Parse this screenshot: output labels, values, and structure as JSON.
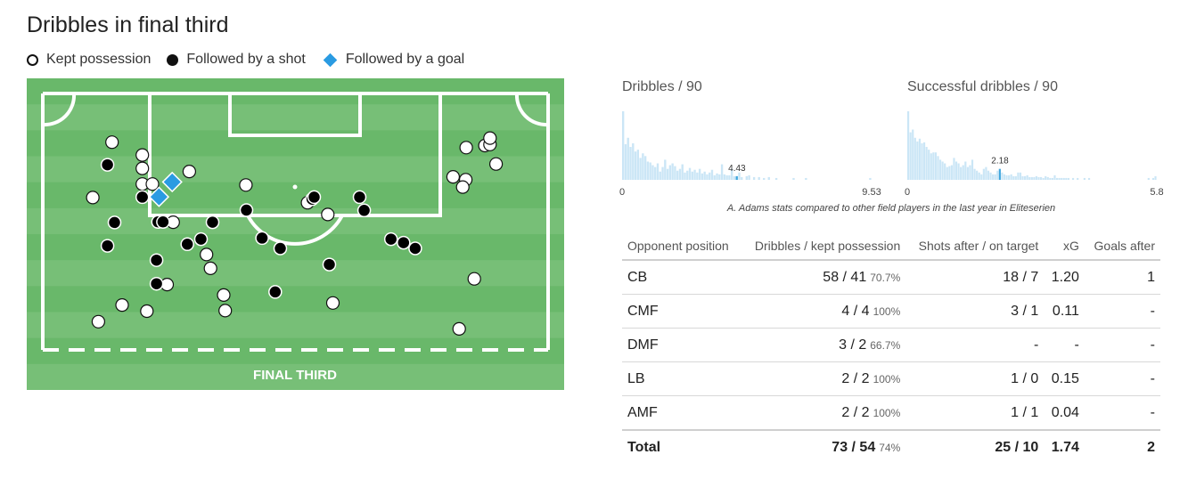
{
  "title": "Dribbles in final third",
  "legend": {
    "kept": "Kept possession",
    "shot": "Followed by a shot",
    "goal": "Followed by a goal"
  },
  "colors": {
    "pitch_dark": "#69b86a",
    "pitch_light": "#77bf77",
    "goal_marker": "#2a9be2",
    "hist_bar": "#cbe6f6",
    "hist_highlight": "#3fa6dd"
  },
  "chart_data": [
    {
      "type": "scatter",
      "title": "Dribbles in final third",
      "zone_label": "FINAL THIRD",
      "coordinate_note": "normalized pitch position: x 0=left touchline, 1=right touchline; y 0=goal line, 1=bottom of final third",
      "series": [
        {
          "name": "Kept possession",
          "points": [
            [
              0.137,
              0.19
            ],
            [
              0.197,
              0.24
            ],
            [
              0.197,
              0.292
            ],
            [
              0.197,
              0.353
            ],
            [
              0.217,
              0.353
            ],
            [
              0.29,
              0.304
            ],
            [
              0.402,
              0.357
            ],
            [
              0.099,
              0.406
            ],
            [
              0.524,
              0.426
            ],
            [
              0.564,
              0.472
            ],
            [
              0.258,
              0.502
            ],
            [
              0.324,
              0.628
            ],
            [
              0.332,
              0.682
            ],
            [
              0.246,
              0.745
            ],
            [
              0.358,
              0.786
            ],
            [
              0.361,
              0.847
            ],
            [
              0.157,
              0.825
            ],
            [
              0.206,
              0.849
            ],
            [
              0.11,
              0.89
            ],
            [
              0.574,
              0.817
            ],
            [
              0.838,
              0.211
            ],
            [
              0.875,
              0.203
            ],
            [
              0.885,
              0.199
            ],
            [
              0.885,
              0.174
            ],
            [
              0.897,
              0.275
            ],
            [
              0.812,
              0.325
            ],
            [
              0.837,
              0.336
            ],
            [
              0.831,
              0.365
            ],
            [
              0.854,
              0.723
            ],
            [
              0.824,
              0.918
            ]
          ]
        },
        {
          "name": "Followed by a shot",
          "points": [
            [
              0.128,
              0.278
            ],
            [
              0.197,
              0.404
            ],
            [
              0.142,
              0.503
            ],
            [
              0.228,
              0.501
            ],
            [
              0.238,
              0.501
            ],
            [
              0.336,
              0.502
            ],
            [
              0.403,
              0.455
            ],
            [
              0.533,
              0.412
            ],
            [
              0.537,
              0.404
            ],
            [
              0.627,
              0.404
            ],
            [
              0.636,
              0.456
            ],
            [
              0.313,
              0.568
            ],
            [
              0.286,
              0.588
            ],
            [
              0.128,
              0.594
            ],
            [
              0.434,
              0.564
            ],
            [
              0.47,
              0.604
            ],
            [
              0.689,
              0.568
            ],
            [
              0.714,
              0.582
            ],
            [
              0.737,
              0.604
            ],
            [
              0.225,
              0.65
            ],
            [
              0.225,
              0.742
            ],
            [
              0.567,
              0.667
            ],
            [
              0.46,
              0.774
            ]
          ]
        },
        {
          "name": "Followed by a goal",
          "points": [
            [
              0.256,
              0.345
            ],
            [
              0.23,
              0.403
            ]
          ]
        }
      ]
    },
    {
      "type": "bar",
      "title": "Dribbles / 90",
      "x_range": [
        0,
        9.53
      ],
      "tick_labels": [
        "0",
        "9.53"
      ],
      "player_value": 4.43,
      "values": [
        75,
        39,
        46,
        36,
        40,
        31,
        33,
        24,
        29,
        26,
        20,
        19,
        16,
        14,
        18,
        9,
        14,
        22,
        12,
        16,
        18,
        15,
        10,
        12,
        17,
        8,
        10,
        13,
        9,
        11,
        8,
        12,
        7,
        9,
        6,
        8,
        11,
        5,
        7,
        6,
        17,
        6,
        5,
        5,
        12,
        4,
        4,
        8,
        3,
        0,
        4,
        5,
        0,
        3,
        0,
        3,
        0,
        2,
        0,
        3,
        0,
        0,
        2,
        0,
        0,
        0,
        0,
        0,
        0,
        2,
        0,
        0,
        0,
        0,
        2,
        0,
        0,
        0,
        0,
        0,
        0,
        0,
        0,
        0,
        0,
        0,
        0,
        0,
        0,
        0,
        0,
        0,
        0,
        0,
        0,
        0,
        0,
        0,
        0,
        0,
        2
      ]
    },
    {
      "type": "bar",
      "title": "Successful dribbles / 90",
      "x_range": [
        0,
        5.8
      ],
      "tick_labels": [
        "0",
        "5.8"
      ],
      "player_value": 2.18,
      "values": [
        75,
        52,
        55,
        46,
        42,
        45,
        40,
        41,
        36,
        33,
        29,
        30,
        30,
        26,
        22,
        20,
        18,
        14,
        15,
        16,
        24,
        20,
        18,
        14,
        16,
        20,
        14,
        16,
        22,
        12,
        10,
        8,
        6,
        12,
        14,
        10,
        8,
        6,
        6,
        10,
        12,
        8,
        6,
        5,
        5,
        6,
        4,
        4,
        8,
        8,
        4,
        4,
        5,
        3,
        3,
        3,
        4,
        3,
        3,
        2,
        4,
        3,
        2,
        2,
        5,
        2,
        2,
        2,
        2,
        2,
        2,
        0,
        2,
        0,
        2,
        0,
        0,
        2,
        0,
        2,
        0,
        0,
        0,
        0,
        0,
        0,
        0,
        0,
        0,
        0,
        0,
        0,
        0,
        0,
        0,
        0,
        0,
        0,
        0,
        0,
        0,
        0,
        0,
        0,
        0,
        2,
        0,
        2,
        4
      ]
    },
    {
      "type": "table",
      "columns": [
        "Opponent position",
        "Dribbles / kept possession",
        "Shots after / on target",
        "xG",
        "Goals after"
      ],
      "rows": [
        {
          "position": "CB",
          "dribbles": "58 / 41",
          "pct": "70.7%",
          "shots": "18 / 7",
          "xg": "1.20",
          "goals": "1"
        },
        {
          "position": "CMF",
          "dribbles": "4 / 4",
          "pct": "100%",
          "shots": "3 / 1",
          "xg": "0.11",
          "goals": "-"
        },
        {
          "position": "DMF",
          "dribbles": "3 / 2",
          "pct": "66.7%",
          "shots": "-",
          "xg": "-",
          "goals": "-"
        },
        {
          "position": "LB",
          "dribbles": "2 / 2",
          "pct": "100%",
          "shots": "1 / 0",
          "xg": "0.15",
          "goals": "-"
        },
        {
          "position": "AMF",
          "dribbles": "2 / 2",
          "pct": "100%",
          "shots": "1 / 1",
          "xg": "0.04",
          "goals": "-"
        }
      ],
      "total": {
        "position": "Total",
        "dribbles": "73 / 54",
        "pct": "74%",
        "shots": "25 / 10",
        "xg": "1.74",
        "goals": "2"
      }
    }
  ],
  "hist_caption": "A. Adams stats compared to other field players in the last year in Eliteserien"
}
